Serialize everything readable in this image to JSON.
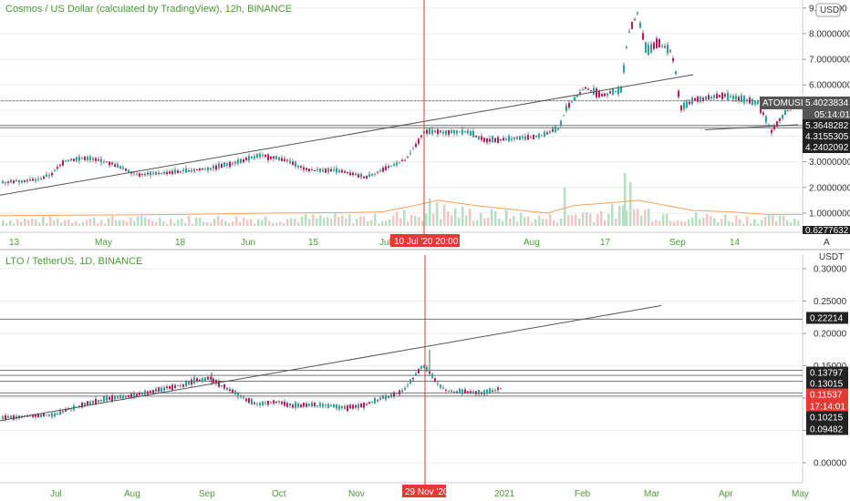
{
  "chart_data": [
    {
      "type": "candlestick",
      "title": "Cosmos / US Dollar (calculated by TradingView), 12h, BINANCE",
      "currency": "USD",
      "symbol": "ATOMUSD",
      "last_price": "5.4023834",
      "countdown": "05:14:01",
      "y_ticks": [
        "9.000000",
        "8.0000000",
        "7.0000000",
        "6.0000000",
        "5.0000000",
        "4.0000000",
        "3.0000000",
        "2.0000000",
        "1.0000000"
      ],
      "horizontal_levels": [
        "5.3648282",
        "4.3155305",
        "4.2402092"
      ],
      "volume_label": "0.6277632",
      "x_ticks": [
        "13",
        "May",
        "18",
        "Jun",
        "15",
        "Jul",
        "Aug",
        "17",
        "Sep",
        "14"
      ],
      "crosshair_time": "10 Jul '20   20:00",
      "ylim": [
        0.5,
        9.1
      ],
      "path": [
        [
          0,
          2.2
        ],
        [
          40,
          2.3
        ],
        [
          55,
          2.5
        ],
        [
          70,
          3.05
        ],
        [
          95,
          3.15
        ],
        [
          120,
          2.95
        ],
        [
          150,
          2.5
        ],
        [
          190,
          2.6
        ],
        [
          230,
          2.75
        ],
        [
          260,
          3.0
        ],
        [
          285,
          3.25
        ],
        [
          310,
          3.1
        ],
        [
          335,
          2.7
        ],
        [
          370,
          2.65
        ],
        [
          400,
          2.4
        ],
        [
          425,
          2.8
        ],
        [
          445,
          3.1
        ],
        [
          465,
          4.2
        ],
        [
          490,
          4.15
        ],
        [
          510,
          4.2
        ],
        [
          530,
          3.85
        ],
        [
          560,
          3.9
        ],
        [
          590,
          4.0
        ],
        [
          612,
          4.3
        ],
        [
          620,
          5.1
        ],
        [
          640,
          5.9
        ],
        [
          660,
          5.6
        ],
        [
          680,
          5.8
        ],
        [
          688,
          8.0
        ],
        [
          698,
          8.8
        ],
        [
          708,
          7.3
        ],
        [
          720,
          7.65
        ],
        [
          735,
          7.3
        ],
        [
          740,
          6.5
        ],
        [
          745,
          5.1
        ],
        [
          760,
          5.4
        ],
        [
          790,
          5.6
        ],
        [
          805,
          5.5
        ],
        [
          830,
          5.3
        ],
        [
          845,
          4.2
        ],
        [
          855,
          4.7
        ],
        [
          870,
          5.3
        ],
        [
          880,
          5.4
        ]
      ],
      "volume_avg": [
        [
          0,
          0.9
        ],
        [
          100,
          0.92
        ],
        [
          200,
          0.95
        ],
        [
          300,
          1.0
        ],
        [
          380,
          1.02
        ],
        [
          420,
          1.05
        ],
        [
          455,
          1.3
        ],
        [
          480,
          1.5
        ],
        [
          520,
          1.3
        ],
        [
          560,
          1.15
        ],
        [
          600,
          1.0
        ],
        [
          630,
          1.3
        ],
        [
          670,
          1.4
        ],
        [
          700,
          1.5
        ],
        [
          730,
          1.3
        ],
        [
          760,
          1.1
        ],
        [
          800,
          1.05
        ],
        [
          840,
          0.95
        ],
        [
          880,
          0.95
        ]
      ],
      "trendlines": [
        [
          [
            0,
            1.7
          ],
          [
            760,
            6.4
          ]
        ],
        [
          [
            773,
            4.25
          ],
          [
            875,
            4.45
          ]
        ]
      ],
      "horizontal_lines": [
        4.42,
        4.33,
        5.38
      ]
    },
    {
      "type": "candlestick",
      "title": "LTO / TetherUS, 1D, BINANCE",
      "currency": "USDT",
      "y_ticks": [
        "0.30000",
        "0.25000",
        "0.20000",
        "0.15000",
        "0.10000",
        "0.05000",
        "0.00000"
      ],
      "price_labels": [
        "0.22214",
        "0.13797",
        "0.13015",
        "0.11537",
        "17:14:01",
        "0.10215",
        "0.09482"
      ],
      "x_ticks": [
        "Jul",
        "Aug",
        "Sep",
        "Oct",
        "Nov",
        "2021",
        "Feb",
        "Mar",
        "Apr",
        "May"
      ],
      "crosshair_time": "29 Nov '20",
      "ylim": [
        -0.05,
        0.32
      ],
      "path": [
        [
          0,
          0.07
        ],
        [
          30,
          0.072
        ],
        [
          60,
          0.075
        ],
        [
          90,
          0.09
        ],
        [
          120,
          0.1
        ],
        [
          150,
          0.105
        ],
        [
          180,
          0.115
        ],
        [
          200,
          0.12
        ],
        [
          215,
          0.128
        ],
        [
          230,
          0.13
        ],
        [
          245,
          0.118
        ],
        [
          260,
          0.105
        ],
        [
          280,
          0.09
        ],
        [
          300,
          0.095
        ],
        [
          320,
          0.088
        ],
        [
          340,
          0.09
        ],
        [
          360,
          0.088
        ],
        [
          380,
          0.085
        ],
        [
          400,
          0.09
        ],
        [
          420,
          0.1
        ],
        [
          440,
          0.11
        ],
        [
          452,
          0.13
        ],
        [
          462,
          0.15
        ],
        [
          470,
          0.14
        ],
        [
          480,
          0.12
        ],
        [
          490,
          0.11
        ],
        [
          510,
          0.11
        ],
        [
          530,
          0.108
        ],
        [
          548,
          0.115
        ]
      ],
      "trendlines": [
        [
          [
            0,
            0.065
          ],
          [
            725,
            0.243
          ]
        ]
      ],
      "horizontal_lines": [
        0.222,
        0.143,
        0.135,
        0.126,
        0.108,
        0.103
      ]
    }
  ],
  "colors": {
    "up": "#26a69a",
    "down": "#c2185b",
    "crosshair": "#e53935",
    "badge": "#e53935",
    "grid": "#ececec"
  },
  "icons": {
    "scale_mode": "A",
    "settings": "gear-icon"
  }
}
